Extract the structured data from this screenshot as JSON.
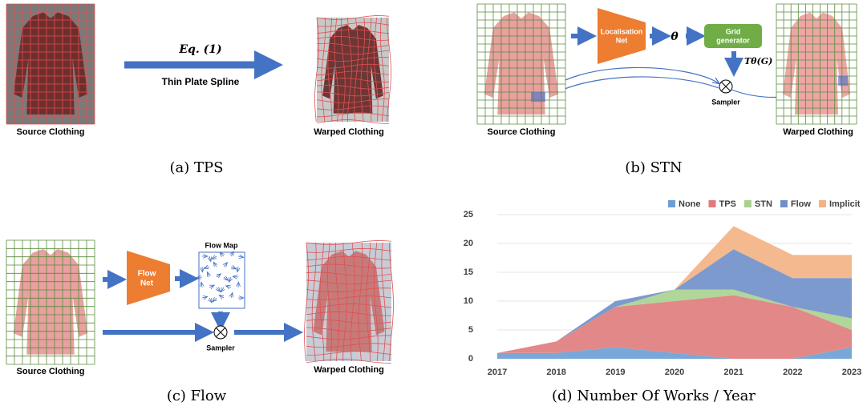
{
  "panels": [
    {
      "caption": "(a) TPS",
      "source": "Source Clothing",
      "equation": "Eq. (1)",
      "method": "Thin Plate Spline",
      "warped": "Warped Clothing"
    },
    {
      "caption": "(b) STN",
      "source": "Source Clothing",
      "localisation": [
        "Localisation",
        "Net"
      ],
      "theta": "θ",
      "grid": [
        "Grid",
        "generator"
      ],
      "transform": "Tθ(G)",
      "sampler": "Sampler",
      "warped": "Warped Clothing"
    },
    {
      "caption": "(c) Flow",
      "source": "Source Clothing",
      "net": [
        "Flow",
        "Net"
      ],
      "flow_map": "Flow Map",
      "sampler": "Sampler",
      "warped": "Warped Clothing"
    }
  ],
  "chart_data": {
    "type": "area",
    "stacked": true,
    "caption": "(d) Number Of Works / Year",
    "categories": [
      "2017",
      "2018",
      "2019",
      "2020",
      "2021",
      "2022",
      "2023"
    ],
    "series": [
      {
        "name": "None",
        "color": "#6a9fd4",
        "values": [
          1,
          1,
          2,
          1,
          0,
          0,
          2
        ]
      },
      {
        "name": "TPS",
        "color": "#e07b7b",
        "values": [
          0,
          2,
          7,
          9,
          11,
          9,
          3
        ]
      },
      {
        "name": "STN",
        "color": "#a9d18e",
        "values": [
          0,
          0,
          0,
          2,
          1,
          0,
          2
        ]
      },
      {
        "name": "Flow",
        "color": "#6f8fc9",
        "values": [
          0,
          0,
          1,
          0,
          7,
          5,
          7
        ]
      },
      {
        "name": "Implicit",
        "color": "#f4b183",
        "values": [
          0,
          0,
          0,
          0,
          4,
          4,
          4
        ]
      }
    ],
    "ylim": [
      0,
      25
    ],
    "yticks": [
      0,
      5,
      10,
      15,
      20,
      25
    ],
    "grid": true
  }
}
